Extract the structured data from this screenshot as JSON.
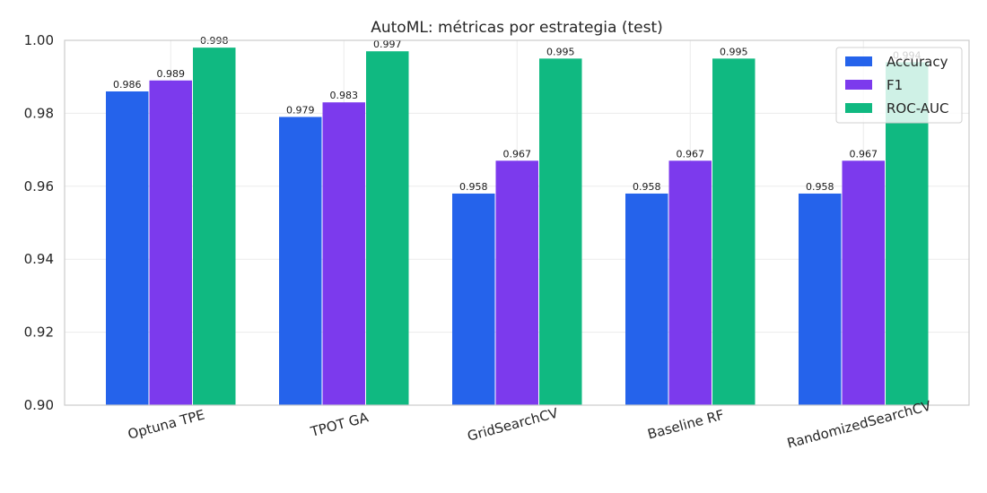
{
  "chart_data": {
    "type": "bar",
    "title": "AutoML: métricas por estrategia (test)",
    "xlabel": "",
    "ylabel": "",
    "categories": [
      "Optuna TPE",
      "TPOT GA",
      "GridSearchCV",
      "Baseline RF",
      "RandomizedSearchCV"
    ],
    "series": [
      {
        "name": "Accuracy",
        "color": "#2563eb",
        "values": [
          0.986,
          0.979,
          0.958,
          0.958,
          0.958
        ],
        "labels": [
          "0.986",
          "0.979",
          "0.958",
          "0.958",
          "0.958"
        ]
      },
      {
        "name": "F1",
        "color": "#7c3aed",
        "values": [
          0.989,
          0.983,
          0.967,
          0.967,
          0.967
        ],
        "labels": [
          "0.989",
          "0.983",
          "0.967",
          "0.967",
          "0.967"
        ]
      },
      {
        "name": "ROC-AUC",
        "color": "#10b981",
        "values": [
          0.998,
          0.997,
          0.995,
          0.995,
          0.994
        ],
        "labels": [
          "0.998",
          "0.997",
          "0.995",
          "0.995",
          "0.994"
        ]
      }
    ],
    "ylim": [
      0.9,
      1.0
    ],
    "yticks": [
      "0.90",
      "0.92",
      "0.94",
      "0.96",
      "0.98",
      "1.00"
    ],
    "grid": true,
    "legend_position": "top-right"
  }
}
